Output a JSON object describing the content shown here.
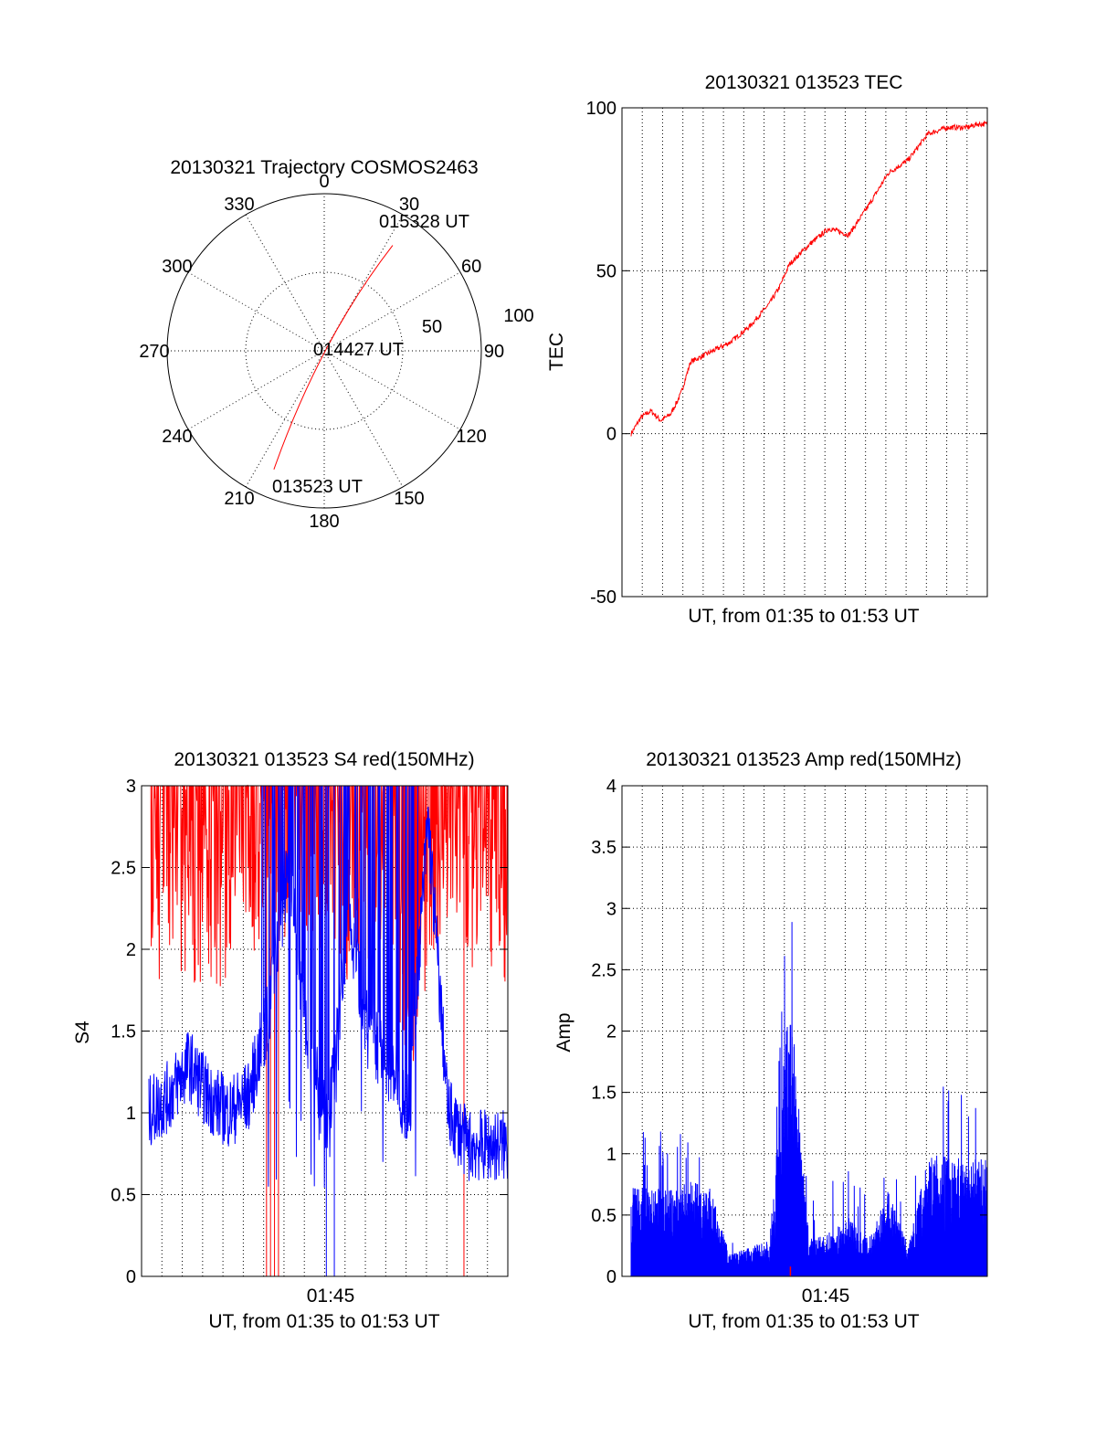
{
  "colors": {
    "red": "#ff0000",
    "blue": "#0000ff",
    "axis": "#000000"
  },
  "chart_data": [
    {
      "type": "polar",
      "title": "20130321 Trajectory COSMOS2463",
      "azimuth_labels": [
        "0",
        "30",
        "60",
        "90",
        "120",
        "150",
        "180",
        "210",
        "240",
        "270",
        "300",
        "330"
      ],
      "radial_labels": [
        "50",
        "100"
      ],
      "trajectory": {
        "start": [
          203,
          82
        ],
        "mid": [
          45,
          2
        ],
        "end": [
          33,
          80
        ]
      },
      "annotations": [
        "015328 UT",
        "014427 UT",
        "013523 UT"
      ]
    },
    {
      "type": "line",
      "title": "20130321 013523 TEC",
      "xlabel": "UT, from 01:35 to 01:53 UT",
      "ylabel": "TEC",
      "ylim": [
        -50,
        100
      ],
      "yticks": [
        "-50",
        "0",
        "50",
        "100"
      ],
      "series": [
        {
          "name": "TEC",
          "color": "red",
          "t": [
            0,
            0.5,
            1,
            1.5,
            2,
            2.5,
            3,
            4,
            5,
            6,
            7,
            7.5,
            8,
            9,
            10,
            11,
            12,
            13,
            14,
            14.5,
            15,
            16,
            17,
            17.5,
            18
          ],
          "values": [
            0,
            5,
            7,
            4,
            6,
            12,
            22,
            25,
            28,
            33,
            40,
            45,
            52,
            58,
            63,
            61,
            70,
            80,
            84,
            88,
            92,
            94,
            94,
            95,
            95
          ]
        }
      ]
    },
    {
      "type": "line",
      "title": "20130321 013523 S4 red(150MHz)",
      "xlabel": "UT, from 01:35 to 01:53 UT",
      "ylabel": "S4",
      "ylim": [
        0,
        3
      ],
      "yticks": [
        "0",
        "0.5",
        "1",
        "1.5",
        "2",
        "2.5",
        "3"
      ],
      "xticks": [
        "01:45"
      ],
      "series": [
        {
          "name": "blue",
          "color": "blue",
          "t": [
            0,
            1,
            2,
            3,
            4,
            5,
            6,
            7,
            8,
            9,
            10,
            11,
            12,
            13,
            14,
            15,
            16,
            17,
            18
          ],
          "values": [
            1.0,
            1.1,
            1.3,
            1.1,
            1.0,
            1.1,
            1.6,
            2.5,
            1.4,
            0.9,
            2.2,
            1.5,
            1.3,
            1.0,
            2.8,
            1.0,
            0.8,
            0.8,
            0.8
          ]
        },
        {
          "name": "red",
          "color": "red",
          "t": [
            0,
            1,
            2,
            3,
            4,
            5,
            6,
            7,
            8,
            9,
            10,
            11,
            12,
            13,
            14,
            15,
            16,
            17,
            18
          ],
          "values": [
            2.3,
            2.5,
            2.4,
            2.3,
            2.4,
            2.6,
            2.5,
            2.7,
            2.5,
            2.6,
            2.4,
            2.5,
            2.6,
            1.7,
            2.4,
            2.6,
            2.4,
            2.5,
            2.3
          ]
        }
      ]
    },
    {
      "type": "bar",
      "title": "20130321 013523 Amp red(150MHz)",
      "xlabel": "UT, from 01:35 to 01:53 UT",
      "ylabel": "Amp",
      "ylim": [
        0,
        4
      ],
      "yticks": [
        "0",
        "0.5",
        "1",
        "1.5",
        "2",
        "2.5",
        "3",
        "3.5",
        "4"
      ],
      "xticks": [
        "01:45"
      ],
      "series": [
        {
          "name": "Amp",
          "color": "blue",
          "t": [
            0,
            1,
            2,
            3,
            4,
            5,
            6,
            7,
            8,
            9,
            10,
            11,
            12,
            13,
            14,
            15,
            16,
            17,
            18
          ],
          "values": [
            0.6,
            0.6,
            0.6,
            0.65,
            0.6,
            0.15,
            0.2,
            0.25,
            2.0,
            0.25,
            0.3,
            0.4,
            0.25,
            0.6,
            0.2,
            0.8,
            0.85,
            0.8,
            0.8
          ]
        }
      ]
    }
  ]
}
